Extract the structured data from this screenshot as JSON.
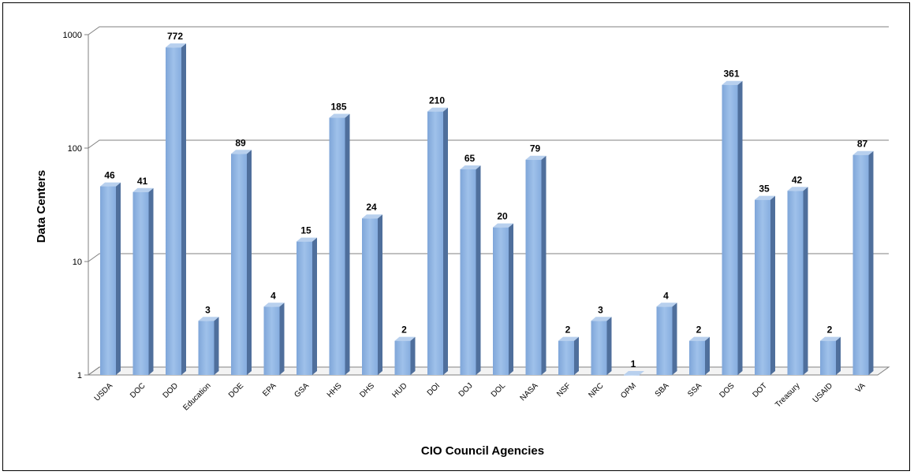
{
  "chart_data": {
    "type": "bar",
    "title": "",
    "xlabel": "CIO Council Agencies",
    "ylabel": "Data Centers",
    "yscale": "log",
    "ylim": [
      1,
      1000
    ],
    "yticks": [
      "1",
      "10",
      "100",
      "1000"
    ],
    "grid": true,
    "legend": "none",
    "bar_color": "#8db4e2",
    "categories": [
      "USDA",
      "DOC",
      "DOD",
      "Education",
      "DOE",
      "EPA",
      "GSA",
      "HHS",
      "DHS",
      "HUD",
      "DOI",
      "DOJ",
      "DOL",
      "NASA",
      "NSF",
      "NRC",
      "OPM",
      "SBA",
      "SSA",
      "DOS",
      "DOT",
      "Treasury",
      "USAID",
      "VA"
    ],
    "values": [
      46,
      41,
      772,
      3,
      89,
      4,
      15,
      185,
      24,
      2,
      210,
      65,
      20,
      79,
      2,
      3,
      1,
      4,
      2,
      361,
      35,
      42,
      2,
      87
    ]
  }
}
